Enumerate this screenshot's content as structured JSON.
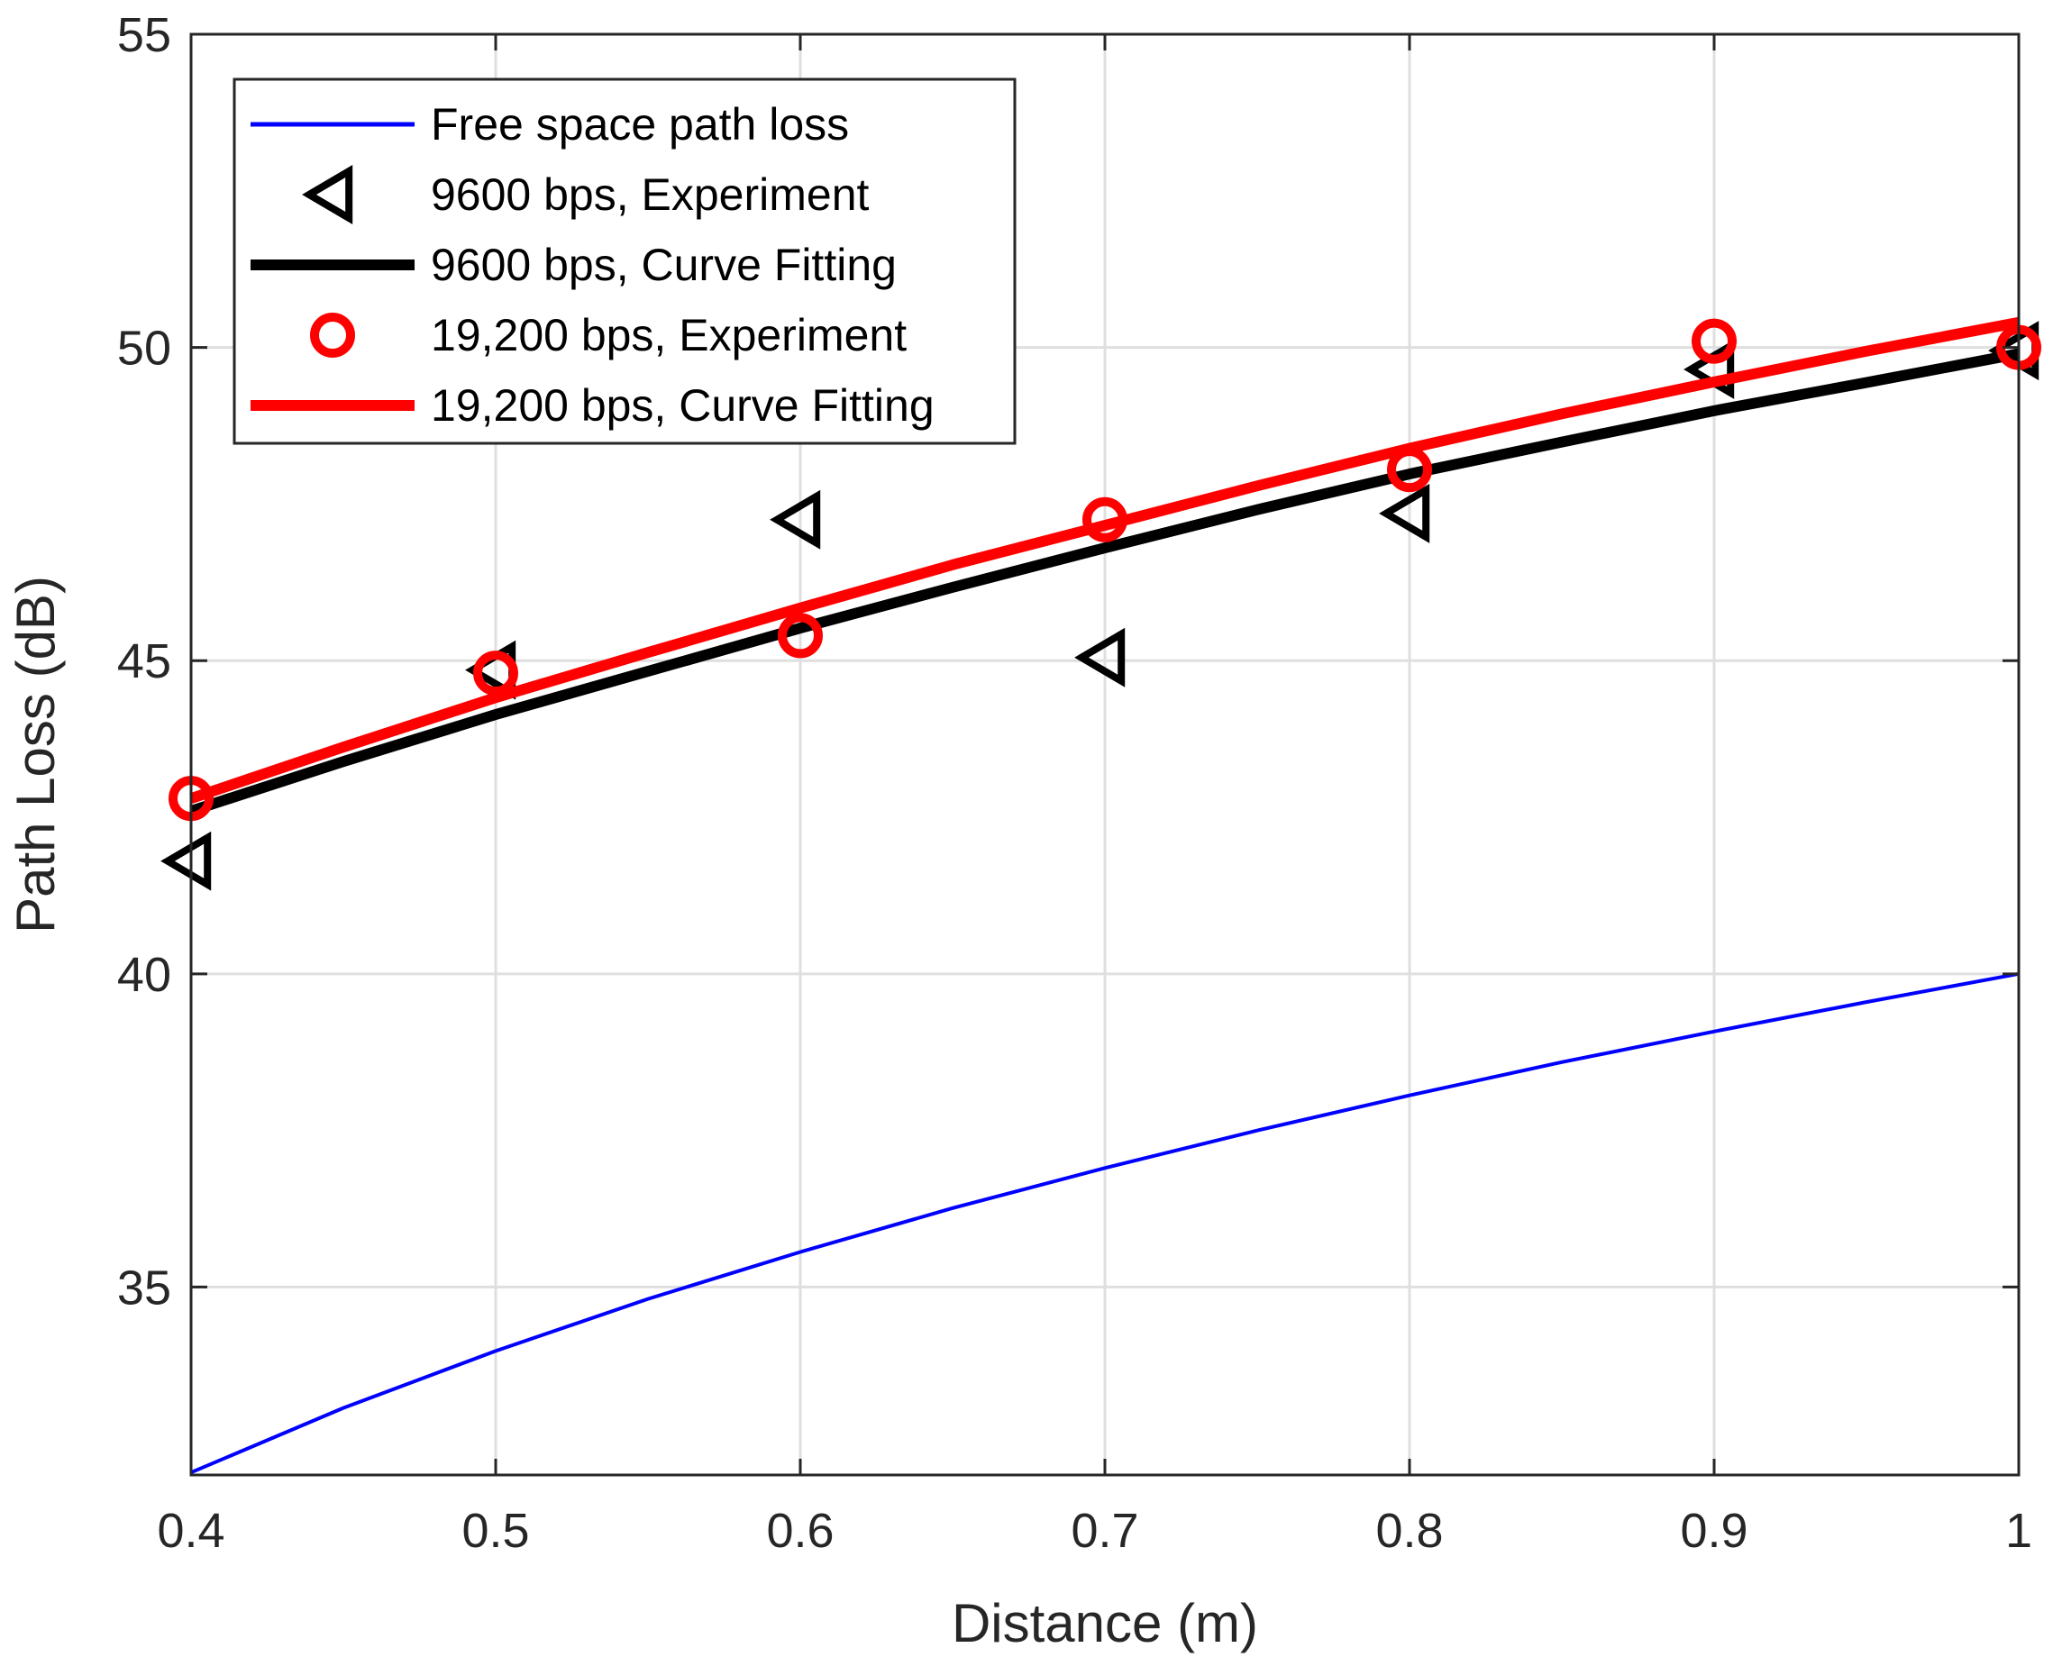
{
  "chart_data": {
    "type": "line",
    "title": "",
    "xlabel": "Distance (m)",
    "ylabel": "Path Loss (dB)",
    "xlim": [
      0.4,
      1.0
    ],
    "ylim": [
      32,
      55
    ],
    "xticks": [
      0.4,
      0.5,
      0.6,
      0.7,
      0.8,
      0.9,
      1.0
    ],
    "xtick_labels": [
      "0.4",
      "0.5",
      "0.6",
      "0.7",
      "0.8",
      "0.9",
      "1"
    ],
    "yticks": [
      35,
      40,
      45,
      50,
      55
    ],
    "ytick_labels": [
      "35",
      "40",
      "45",
      "50",
      "55"
    ],
    "grid": true,
    "legend_position": "top-left",
    "series": [
      {
        "name": "Free space path loss",
        "kind": "line",
        "color": "#0000ff",
        "x": [
          0.4,
          0.45,
          0.5,
          0.55,
          0.6,
          0.65,
          0.7,
          0.75,
          0.8,
          0.85,
          0.9,
          0.95,
          1.0
        ],
        "y": [
          32.04,
          33.07,
          33.98,
          34.81,
          35.56,
          36.26,
          36.9,
          37.5,
          38.06,
          38.59,
          39.08,
          39.55,
          40.0
        ]
      },
      {
        "name": "9600 bps, Experiment",
        "kind": "marker-triangle-left",
        "color": "#000000",
        "x": [
          0.4,
          0.5,
          0.6,
          0.7,
          0.8,
          0.9,
          1.0
        ],
        "y": [
          41.8,
          44.85,
          47.25,
          45.05,
          47.35,
          49.65,
          49.95
        ]
      },
      {
        "name": "9600 bps, Curve Fitting",
        "kind": "line",
        "color": "#000000",
        "x": [
          0.4,
          0.45,
          0.5,
          0.55,
          0.6,
          0.65,
          0.7,
          0.75,
          0.8,
          0.85,
          0.9,
          0.95,
          1.0
        ],
        "y": [
          42.6,
          43.39,
          44.14,
          44.83,
          45.52,
          46.17,
          46.8,
          47.41,
          47.98,
          48.49,
          48.99,
          49.44,
          49.9
        ]
      },
      {
        "name": "19,200 bps, Experiment",
        "kind": "marker-circle",
        "color": "#ff0000",
        "x": [
          0.4,
          0.5,
          0.6,
          0.7,
          0.8,
          0.9,
          1.0
        ],
        "y": [
          42.8,
          44.8,
          45.4,
          47.25,
          48.05,
          50.1,
          50.0
        ]
      },
      {
        "name": "19,200 bps, Curve Fitting",
        "kind": "line",
        "color": "#ff0000",
        "x": [
          0.4,
          0.45,
          0.5,
          0.55,
          0.6,
          0.65,
          0.7,
          0.75,
          0.8,
          0.85,
          0.9,
          0.95,
          1.0
        ],
        "y": [
          42.8,
          43.62,
          44.41,
          45.13,
          45.84,
          46.53,
          47.16,
          47.79,
          48.39,
          48.94,
          49.45,
          49.94,
          50.4
        ]
      }
    ]
  }
}
